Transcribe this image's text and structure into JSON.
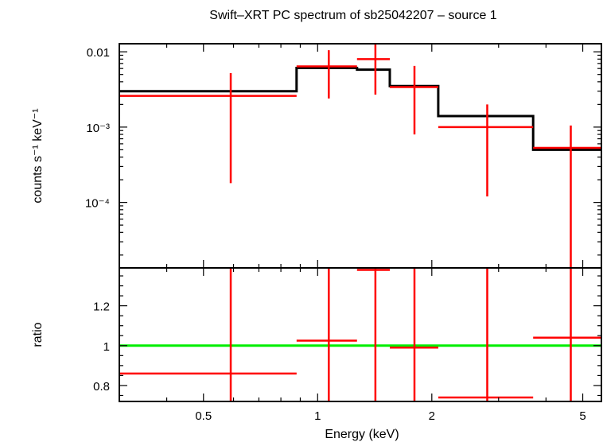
{
  "chart_data": {
    "type": "scatter",
    "title": "Swift–XRT PC spectrum of sb25042207 – source 1",
    "xlabel": "Energy (keV)",
    "x_scale": "log",
    "xlim": [
      0.3,
      5.6
    ],
    "x_ticks": [
      {
        "value": 0.5,
        "label": "0.5"
      },
      {
        "value": 1,
        "label": "1"
      },
      {
        "value": 2,
        "label": "2"
      },
      {
        "value": 5,
        "label": "5"
      }
    ],
    "panels": [
      {
        "name": "spectrum",
        "ylabel": "counts s⁻¹ keV⁻¹",
        "y_scale": "log",
        "ylim": [
          1.35e-05,
          0.0128
        ],
        "y_ticks": [
          {
            "value": 0.01,
            "label": "0.01"
          },
          {
            "value": 0.001,
            "label": "10⁻³"
          },
          {
            "value": 0.0001,
            "label": "10⁻⁴"
          }
        ],
        "series": [
          {
            "kind": "data",
            "color": "#ff0000",
            "points": [
              {
                "x": 0.59,
                "xlo": 0.3,
                "xhi": 0.88,
                "y": 0.0026,
                "ylo": 0.00018,
                "yhi": 0.0052
              },
              {
                "x": 1.07,
                "xlo": 0.88,
                "xhi": 1.27,
                "y": 0.0064,
                "ylo": 0.0024,
                "yhi": 0.0105
              },
              {
                "x": 1.42,
                "xlo": 1.27,
                "xhi": 1.55,
                "y": 0.008,
                "ylo": 0.0027,
                "yhi": 0.0125
              },
              {
                "x": 1.8,
                "xlo": 1.55,
                "xhi": 2.08,
                "y": 0.0034,
                "ylo": 0.0008,
                "yhi": 0.0065
              },
              {
                "x": 2.8,
                "xlo": 2.08,
                "xhi": 3.7,
                "y": 0.001,
                "ylo": 0.00012,
                "yhi": 0.002
              },
              {
                "x": 4.65,
                "xlo": 3.7,
                "xhi": 5.6,
                "y": 0.00053,
                "ylo": 1.35e-05,
                "yhi": 0.00105
              }
            ]
          },
          {
            "kind": "model",
            "color": "#000000",
            "steps": [
              {
                "xlo": 0.3,
                "xhi": 0.88,
                "y": 0.003
              },
              {
                "xlo": 0.88,
                "xhi": 1.27,
                "y": 0.0061
              },
              {
                "xlo": 1.27,
                "xhi": 1.55,
                "y": 0.0058
              },
              {
                "xlo": 1.55,
                "xhi": 2.08,
                "y": 0.0035
              },
              {
                "xlo": 2.08,
                "xhi": 3.7,
                "y": 0.0014
              },
              {
                "xlo": 3.7,
                "xhi": 5.6,
                "y": 0.0005
              }
            ]
          }
        ]
      },
      {
        "name": "ratio",
        "ylabel": "ratio",
        "y_scale": "linear",
        "ylim": [
          0.72,
          1.39
        ],
        "y_ticks": [
          {
            "value": 0.8,
            "label": "0.8"
          },
          {
            "value": 1,
            "label": "1"
          },
          {
            "value": 1.2,
            "label": "1.2"
          }
        ],
        "reference_line": {
          "y": 1,
          "color": "#00ee00"
        },
        "series": [
          {
            "kind": "data",
            "color": "#ff0000",
            "points": [
              {
                "x": 0.59,
                "xlo": 0.3,
                "xhi": 0.88,
                "y": 0.86,
                "ylo": 0.72,
                "yhi": 1.39
              },
              {
                "x": 1.07,
                "xlo": 0.88,
                "xhi": 1.27,
                "y": 1.025,
                "ylo": 0.72,
                "yhi": 1.39
              },
              {
                "x": 1.42,
                "xlo": 1.27,
                "xhi": 1.55,
                "y": 1.38,
                "ylo": 0.72,
                "yhi": 1.39
              },
              {
                "x": 1.8,
                "xlo": 1.55,
                "xhi": 2.08,
                "y": 0.99,
                "ylo": 0.72,
                "yhi": 1.39
              },
              {
                "x": 2.8,
                "xlo": 2.08,
                "xhi": 3.7,
                "y": 0.74,
                "ylo": 0.72,
                "yhi": 1.39
              },
              {
                "x": 4.65,
                "xlo": 3.7,
                "xhi": 5.6,
                "y": 1.04,
                "ylo": 0.72,
                "yhi": 1.39
              }
            ]
          }
        ]
      }
    ]
  }
}
